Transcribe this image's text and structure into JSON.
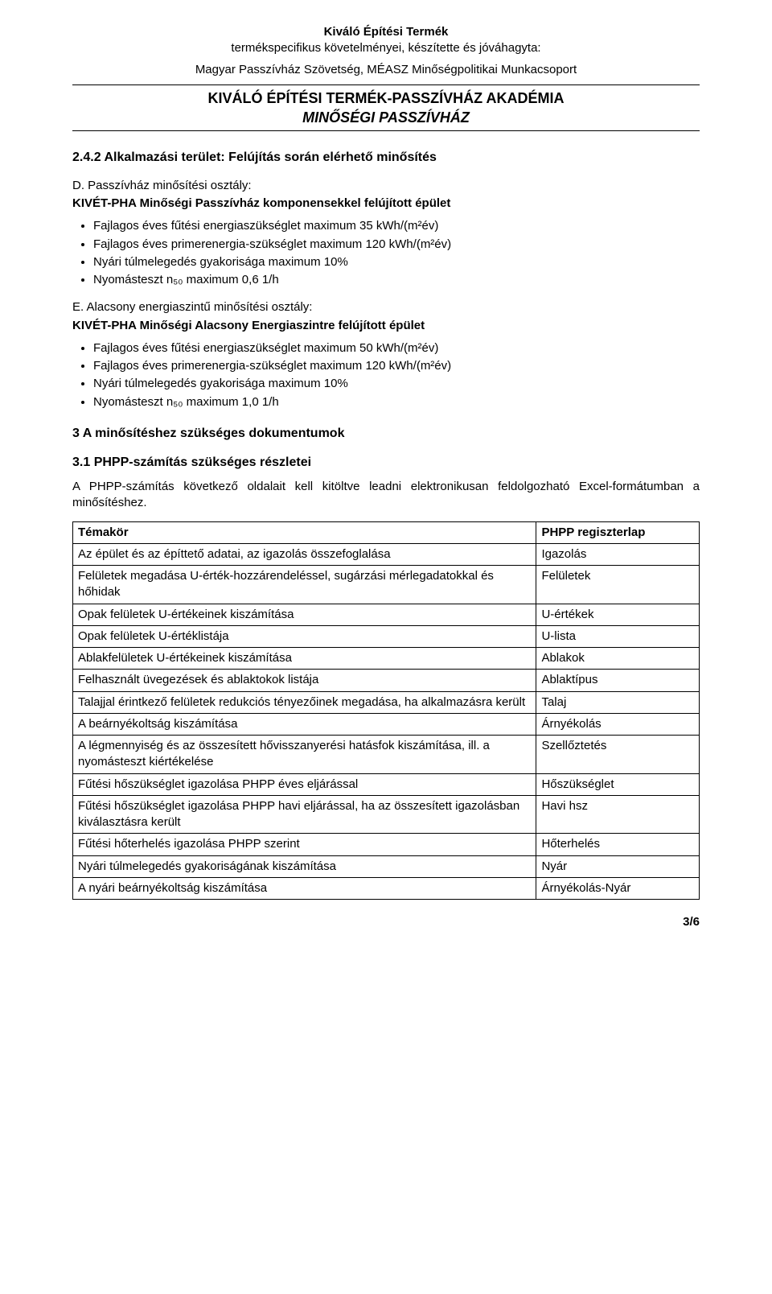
{
  "header": {
    "line1": "Kiváló Építési Termék",
    "line2": "termékspecifikus követelményei, készítette és jóváhagyta:",
    "line3": "Magyar Passzívház Szövetség, MÉASZ Minőségpolitikai Munkacsoport"
  },
  "title": {
    "line1": "KIVÁLÓ ÉPÍTÉSI TERMÉK-PASSZÍVHÁZ AKADÉMIA",
    "line2": "MINŐSÉGI PASSZÍVHÁZ"
  },
  "sections": {
    "s242": {
      "heading": "2.4.2 Alkalmazási terület: Felújítás során elérhető minősítés",
      "blockD": {
        "lead": "D. Passzívház minősítési osztály:",
        "sub": "KIVÉT-PHA Minőségi Passzívház komponensekkel felújított épület",
        "bullets": [
          "Fajlagos éves fűtési energiaszükséglet maximum 35 kWh/(m²év)",
          "Fajlagos éves primerenergia-szükséglet maximum 120 kWh/(m²év)",
          "Nyári túlmelegedés gyakorisága maximum 10%",
          "Nyomásteszt n₅₀ maximum 0,6 1/h"
        ]
      },
      "blockE": {
        "lead": "E. Alacsony energiaszintű minősítési osztály:",
        "sub": "KIVÉT-PHA Minőségi Alacsony Energiaszintre felújított épület",
        "bullets": [
          "Fajlagos éves fűtési energiaszükséglet maximum 50 kWh/(m²év)",
          "Fajlagos éves primerenergia-szükséglet maximum 120 kWh/(m²év)",
          "Nyári túlmelegedés gyakorisága maximum 10%",
          "Nyomásteszt n₅₀ maximum 1,0 1/h"
        ]
      }
    },
    "s3": {
      "heading": "3    A minősítéshez szükséges dokumentumok"
    },
    "s31": {
      "heading": "3.1 PHPP-számítás szükséges részletei",
      "intro": "A PHPP-számítás következő oldalait kell kitöltve leadni elektronikusan feldolgozható Excel-formátumban a minősítéshez."
    }
  },
  "table": {
    "headers": {
      "topic": "Témakör",
      "phpp": "PHPP regiszterlap"
    },
    "rows": [
      {
        "topic": "Az épület és az építtető adatai, az igazolás összefoglalása",
        "phpp": "Igazolás"
      },
      {
        "topic": "Felületek megadása U-érték-hozzárendeléssel, sugárzási mérlegadatokkal és hőhidak",
        "phpp": "Felületek"
      },
      {
        "topic": "Opak felületek U-értékeinek kiszámítása",
        "phpp": "U-értékek"
      },
      {
        "topic": "Opak felületek U-értéklistája",
        "phpp": "U-lista"
      },
      {
        "topic": "Ablakfelületek U-értékeinek kiszámítása",
        "phpp": "Ablakok"
      },
      {
        "topic": "Felhasznált üvegezések és ablaktokok listája",
        "phpp": "Ablaktípus"
      },
      {
        "topic": "Talajjal érintkező felületek redukciós tényezőinek megadása, ha alkalmazásra került",
        "phpp": "Talaj"
      },
      {
        "topic": "A beárnyékoltság kiszámítása",
        "phpp": "Árnyékolás"
      },
      {
        "topic": "A légmennyiség és az összesített hővisszanyerési hatásfok kiszámítása, ill. a nyomásteszt kiértékelése",
        "phpp": "Szellőztetés"
      },
      {
        "topic": "Fűtési hőszükséglet igazolása PHPP éves eljárással",
        "phpp": "Hőszükséglet"
      },
      {
        "topic": "Fűtési hőszükséglet igazolása PHPP havi eljárással, ha az összesített igazolásban kiválasztásra került",
        "phpp": "Havi hsz"
      },
      {
        "topic": "Fűtési hőterhelés igazolása PHPP szerint",
        "phpp": "Hőterhelés"
      },
      {
        "topic": "Nyári túlmelegedés gyakoriságának kiszámítása",
        "phpp": "Nyár"
      },
      {
        "topic": "A nyári beárnyékoltság kiszámítása",
        "phpp": "Árnyékolás-Nyár"
      }
    ]
  },
  "pageNumber": "3/6"
}
